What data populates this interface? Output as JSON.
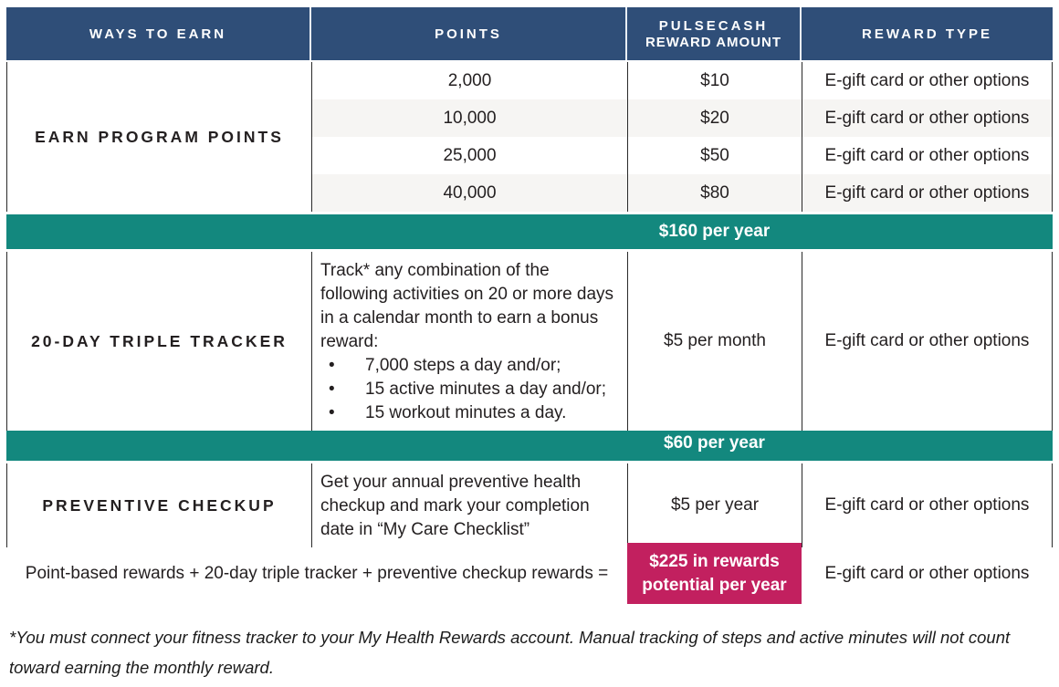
{
  "colors": {
    "navy_header": "#2f4e78",
    "teal_subtotal": "#13887e",
    "pink_total": "#c2205f",
    "alt_row": "#f6f5f3"
  },
  "header": {
    "col1": "WAYS TO EARN",
    "col2": "POINTS",
    "col3_line1": "PULSECASH",
    "col3_line2": "REWARD AMOUNT",
    "col4": "REWARD TYPE"
  },
  "sections": {
    "earn_points": {
      "label": "EARN PROGRAM POINTS",
      "rows": [
        {
          "points": "2,000",
          "reward": "$10",
          "type": "E-gift card or other options"
        },
        {
          "points": "10,000",
          "reward": "$20",
          "type": "E-gift card or other options"
        },
        {
          "points": "25,000",
          "reward": "$50",
          "type": "E-gift card or other options"
        },
        {
          "points": "40,000",
          "reward": "$80",
          "type": "E-gift card or other options"
        }
      ],
      "subtotal": "$160 per year"
    },
    "triple_tracker": {
      "label": "20-DAY TRIPLE TRACKER",
      "description_intro": "Track* any combination of the following activities on 20 or more days in a calendar month to earn a bonus reward:",
      "bullets": [
        "7,000 steps a day and/or;",
        "15 active minutes a day and/or;",
        "15 workout minutes a day."
      ],
      "reward": "$5 per month",
      "type": "E-gift card or other options",
      "subtotal": "$60 per year"
    },
    "preventive": {
      "label": "PREVENTIVE CHECKUP",
      "description": "Get your annual preventive health checkup and mark your completion date in “My Care Checklist”",
      "reward": "$5 per year",
      "type": "E-gift card or other options"
    }
  },
  "summary": {
    "equation": "Point-based rewards + 20-day triple tracker + preventive checkup rewards =",
    "total_line1": "$225 in rewards",
    "total_line2": "potential per year",
    "type": "E-gift card or other options"
  },
  "footnote": "*You must connect your fitness tracker to your My Health Rewards account. Manual tracking of steps and active minutes will not count toward earning the monthly reward."
}
